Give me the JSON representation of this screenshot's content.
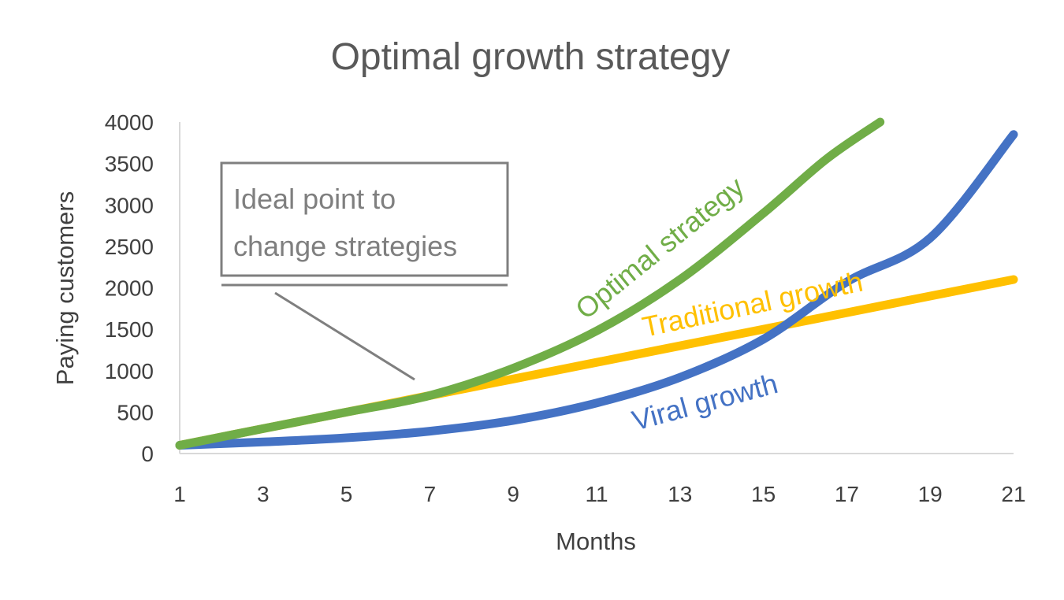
{
  "chart_data": {
    "type": "line",
    "title": "Optimal growth strategy",
    "xlabel": "Months",
    "ylabel": "Paying customers",
    "xlim": [
      1,
      21
    ],
    "ylim": [
      0,
      4000
    ],
    "x_ticks": [
      "1",
      "3",
      "5",
      "7",
      "9",
      "11",
      "13",
      "15",
      "17",
      "19",
      "21"
    ],
    "y_ticks": [
      "0",
      "500",
      "1000",
      "1500",
      "2000",
      "2500",
      "3000",
      "3500",
      "4000"
    ],
    "grid": false,
    "legend": "none",
    "series": [
      {
        "name": "Traditional growth",
        "color": "#FFC000",
        "x": [
          1,
          3,
          5,
          7,
          9,
          11,
          13,
          15,
          17,
          19,
          21
        ],
        "y": [
          100,
          300,
          500,
          700,
          900,
          1100,
          1300,
          1500,
          1700,
          1900,
          2100
        ]
      },
      {
        "name": "Viral growth",
        "color": "#4472C4",
        "x": [
          1,
          3,
          5,
          7,
          9,
          11,
          13,
          15,
          17,
          19,
          21
        ],
        "y": [
          100,
          140,
          190,
          270,
          400,
          610,
          920,
          1380,
          2070,
          2600,
          3850
        ]
      },
      {
        "name": "Optimal strategy",
        "color": "#70AD47",
        "x": [
          1,
          3,
          5,
          7,
          9,
          11,
          13,
          15,
          16.5,
          17.8
        ],
        "y": [
          100,
          300,
          500,
          700,
          1030,
          1480,
          2100,
          2900,
          3550,
          4000
        ]
      }
    ],
    "annotations": [
      {
        "text_lines": [
          "Ideal point to",
          "change strategies"
        ],
        "points_to": {
          "x": 6.7,
          "y": 700
        }
      }
    ]
  }
}
